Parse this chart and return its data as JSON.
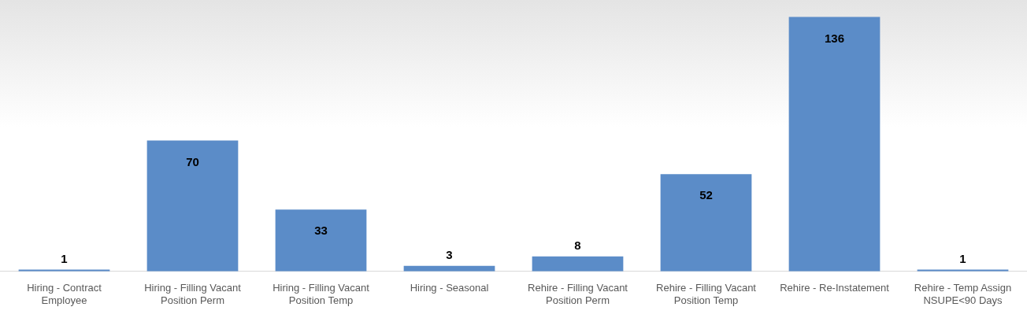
{
  "chart_data": {
    "type": "bar",
    "categories": [
      "Hiring - Contract Employee",
      "Hiring - Filling Vacant Position Perm",
      "Hiring - Filling Vacant Position Temp",
      "Hiring - Seasonal",
      "Rehire - Filling Vacant Position Perm",
      "Rehire - Filling Vacant Position Temp",
      "Rehire - Re-Instatement",
      "Rehire - Temp Assign NSUPE<90 Days"
    ],
    "values": [
      1,
      70,
      33,
      3,
      8,
      52,
      136,
      1
    ],
    "color": "#5b8cc8",
    "data_labels": true,
    "grid": false,
    "legend": false
  }
}
